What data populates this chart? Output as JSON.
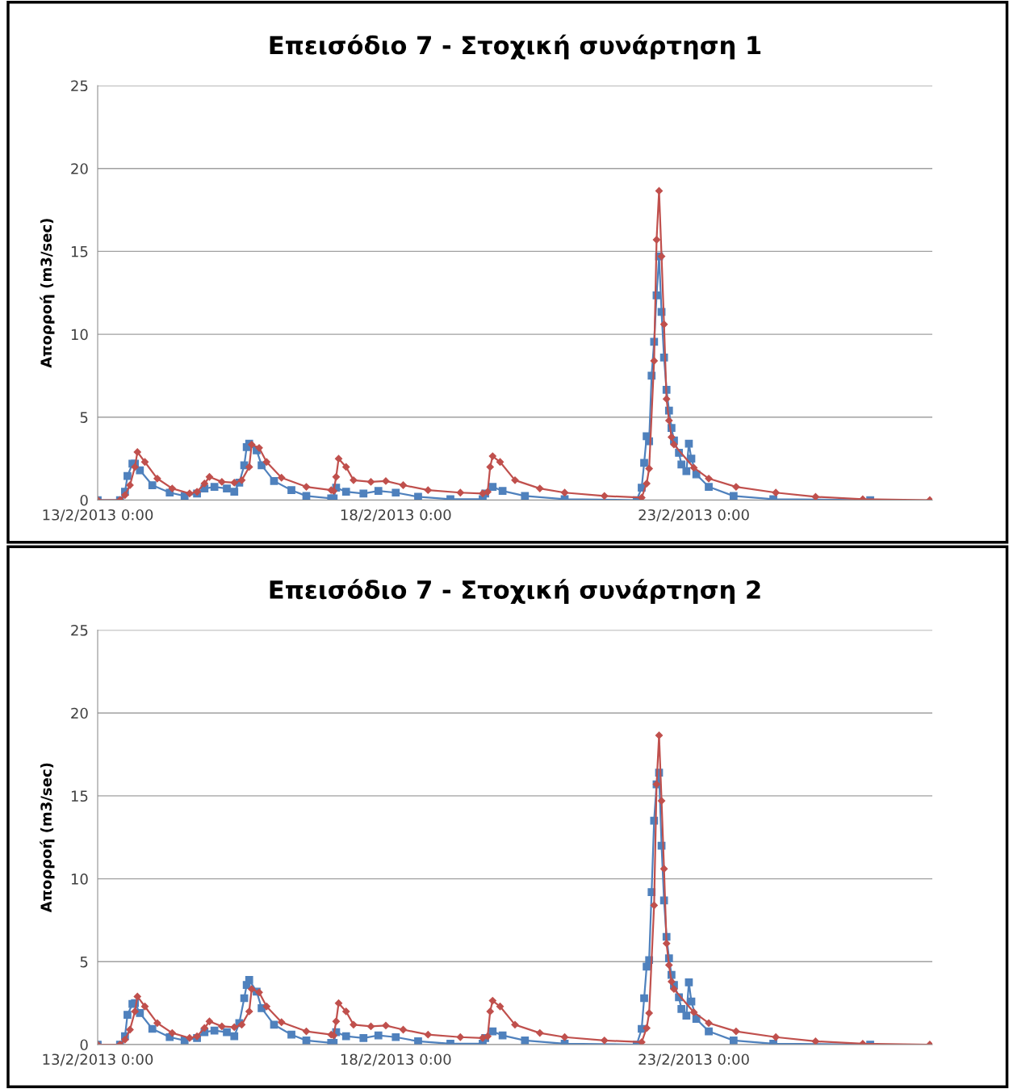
{
  "chart_data": [
    {
      "type": "line",
      "title": "Επεισόδιο 7 - Στοχική συνάρτηση 1",
      "ylabel": "Απορροή (m3/sec)",
      "xlim": [
        "2013-02-13T00:00",
        "2013-02-27T00:00"
      ],
      "xticks": [
        {
          "value": "2013-02-13T00:00",
          "label": "13/2/2013 0:00"
        },
        {
          "value": "2013-02-18T00:00",
          "label": "18/2/2013 0:00"
        },
        {
          "value": "2013-02-23T00:00",
          "label": "23/2/2013 0:00"
        }
      ],
      "ylim": [
        0,
        25
      ],
      "yticks": [
        0,
        5,
        10,
        15,
        20,
        25
      ],
      "grid": "y",
      "series": [
        {
          "color": "#4f81bd",
          "marker": "square",
          "x": [
            "2013-02-13T00:00",
            "2013-02-13T09:00",
            "2013-02-13T11:00",
            "2013-02-13T12:00",
            "2013-02-13T14:00",
            "2013-02-13T15:00",
            "2013-02-13T17:00",
            "2013-02-13T22:00",
            "2013-02-14T05:00",
            "2013-02-14T11:00",
            "2013-02-14T16:00",
            "2013-02-14T19:00",
            "2013-02-14T23:00",
            "2013-02-15T04:00",
            "2013-02-15T07:00",
            "2013-02-15T09:00",
            "2013-02-15T11:00",
            "2013-02-15T12:00",
            "2013-02-15T13:00",
            "2013-02-15T16:00",
            "2013-02-15T18:00",
            "2013-02-15T23:00",
            "2013-02-16T06:00",
            "2013-02-16T12:00",
            "2013-02-16T22:00",
            "2013-02-16T23:00",
            "2013-02-17T00:00",
            "2013-02-17T04:00",
            "2013-02-17T11:00",
            "2013-02-17T17:00",
            "2013-02-18T00:00",
            "2013-02-18T09:00",
            "2013-02-18T22:00",
            "2013-02-19T11:00",
            "2013-02-19T12:00",
            "2013-02-19T15:00",
            "2013-02-19T19:00",
            "2013-02-20T04:00",
            "2013-02-20T20:00",
            "2013-02-22T01:00",
            "2013-02-22T03:00",
            "2013-02-22T04:00",
            "2013-02-22T05:00",
            "2013-02-22T06:00",
            "2013-02-22T07:00",
            "2013-02-22T08:00",
            "2013-02-22T09:00",
            "2013-02-22T10:00",
            "2013-02-22T11:00",
            "2013-02-22T12:00",
            "2013-02-22T13:00",
            "2013-02-22T14:00",
            "2013-02-22T15:00",
            "2013-02-22T16:00",
            "2013-02-22T18:00",
            "2013-02-22T19:00",
            "2013-02-22T21:00",
            "2013-02-22T22:00",
            "2013-02-22T23:00",
            "2013-02-23T01:00",
            "2013-02-23T06:00",
            "2013-02-23T16:00",
            "2013-02-24T08:00",
            "2013-02-25T23:00"
          ],
          "values": [
            0,
            0,
            0.5,
            1.45,
            2.2,
            2.2,
            1.8,
            0.9,
            0.45,
            0.25,
            0.4,
            0.7,
            0.8,
            0.7,
            0.5,
            1.05,
            2.1,
            3.2,
            3.4,
            3.0,
            2.1,
            1.15,
            0.6,
            0.25,
            0.1,
            0.1,
            0.75,
            0.5,
            0.4,
            0.55,
            0.45,
            0.2,
            0.05,
            0.05,
            0.4,
            0.8,
            0.55,
            0.25,
            0.05,
            0,
            0.75,
            2.25,
            3.85,
            3.55,
            7.5,
            9.55,
            12.35,
            14.7,
            11.35,
            8.6,
            6.65,
            5.4,
            4.35,
            3.6,
            2.85,
            2.15,
            1.75,
            3.4,
            2.5,
            1.55,
            0.8,
            0.25,
            0.05,
            0
          ]
        },
        {
          "color": "#c0504d",
          "marker": "diamond",
          "x": [
            "2013-02-13T00:00",
            "2013-02-13T09:00",
            "2013-02-13T11:00",
            "2013-02-13T13:00",
            "2013-02-13T15:00",
            "2013-02-13T16:00",
            "2013-02-13T19:00",
            "2013-02-14T00:00",
            "2013-02-14T06:00",
            "2013-02-14T13:00",
            "2013-02-14T16:00",
            "2013-02-14T19:00",
            "2013-02-14T21:00",
            "2013-02-15T02:00",
            "2013-02-15T07:00",
            "2013-02-15T10:00",
            "2013-02-15T13:00",
            "2013-02-15T14:00",
            "2013-02-15T17:00",
            "2013-02-15T20:00",
            "2013-02-16T02:00",
            "2013-02-16T12:00",
            "2013-02-16T22:00",
            "2013-02-16T23:00",
            "2013-02-17T00:00",
            "2013-02-17T01:00",
            "2013-02-17T04:00",
            "2013-02-17T07:00",
            "2013-02-17T14:00",
            "2013-02-17T20:00",
            "2013-02-18T03:00",
            "2013-02-18T13:00",
            "2013-02-19T02:00",
            "2013-02-19T11:00",
            "2013-02-19T13:00",
            "2013-02-19T14:00",
            "2013-02-19T15:00",
            "2013-02-19T18:00",
            "2013-02-20T00:00",
            "2013-02-20T10:00",
            "2013-02-20T20:00",
            "2013-02-21T12:00",
            "2013-02-22T03:00",
            "2013-02-22T05:00",
            "2013-02-22T06:00",
            "2013-02-22T08:00",
            "2013-02-22T09:00",
            "2013-02-22T10:00",
            "2013-02-22T11:00",
            "2013-02-22T12:00",
            "2013-02-22T13:00",
            "2013-02-22T14:00",
            "2013-02-22T15:00",
            "2013-02-22T16:00",
            "2013-02-23T00:00",
            "2013-02-23T06:00",
            "2013-02-23T17:00",
            "2013-02-24T09:00",
            "2013-02-25T01:00",
            "2013-02-25T20:00",
            "2013-02-26T23:00"
          ],
          "values": [
            0,
            0,
            0.3,
            0.9,
            2.0,
            2.9,
            2.3,
            1.3,
            0.7,
            0.4,
            0.5,
            1.0,
            1.4,
            1.1,
            1.05,
            1.2,
            2.0,
            3.35,
            3.15,
            2.3,
            1.35,
            0.8,
            0.6,
            0.55,
            1.4,
            2.5,
            2.0,
            1.2,
            1.1,
            1.15,
            0.9,
            0.6,
            0.45,
            0.4,
            0.5,
            2.0,
            2.65,
            2.3,
            1.2,
            0.7,
            0.45,
            0.25,
            0.15,
            1.0,
            1.9,
            8.4,
            15.7,
            18.65,
            14.7,
            10.6,
            6.1,
            4.8,
            3.8,
            3.35,
            1.95,
            1.3,
            0.8,
            0.45,
            0.2,
            0.05,
            0
          ]
        }
      ]
    },
    {
      "type": "line",
      "title": "Επεισόδιο 7 - Στοχική συνάρτηση 2",
      "ylabel": "Απορροή (m3/sec)",
      "xlim": [
        "2013-02-13T00:00",
        "2013-02-27T00:00"
      ],
      "xticks": [
        {
          "value": "2013-02-13T00:00",
          "label": "13/2/2013 0:00"
        },
        {
          "value": "2013-02-18T00:00",
          "label": "18/2/2013 0:00"
        },
        {
          "value": "2013-02-23T00:00",
          "label": "23/2/2013 0:00"
        }
      ],
      "ylim": [
        0,
        25
      ],
      "yticks": [
        0,
        5,
        10,
        15,
        20,
        25
      ],
      "grid": "y",
      "series": [
        {
          "color": "#4f81bd",
          "marker": "square",
          "x": [
            "2013-02-13T00:00",
            "2013-02-13T09:00",
            "2013-02-13T11:00",
            "2013-02-13T12:00",
            "2013-02-13T14:00",
            "2013-02-13T15:00",
            "2013-02-13T17:00",
            "2013-02-13T22:00",
            "2013-02-14T05:00",
            "2013-02-14T11:00",
            "2013-02-14T16:00",
            "2013-02-14T19:00",
            "2013-02-14T23:00",
            "2013-02-15T04:00",
            "2013-02-15T07:00",
            "2013-02-15T09:00",
            "2013-02-15T11:00",
            "2013-02-15T12:00",
            "2013-02-15T13:00",
            "2013-02-15T16:00",
            "2013-02-15T18:00",
            "2013-02-15T23:00",
            "2013-02-16T06:00",
            "2013-02-16T12:00",
            "2013-02-16T22:00",
            "2013-02-16T23:00",
            "2013-02-17T00:00",
            "2013-02-17T04:00",
            "2013-02-17T11:00",
            "2013-02-17T17:00",
            "2013-02-18T00:00",
            "2013-02-18T09:00",
            "2013-02-18T22:00",
            "2013-02-19T11:00",
            "2013-02-19T12:00",
            "2013-02-19T15:00",
            "2013-02-19T19:00",
            "2013-02-20T04:00",
            "2013-02-20T20:00",
            "2013-02-22T01:00",
            "2013-02-22T03:00",
            "2013-02-22T04:00",
            "2013-02-22T05:00",
            "2013-02-22T06:00",
            "2013-02-22T07:00",
            "2013-02-22T08:00",
            "2013-02-22T09:00",
            "2013-02-22T10:00",
            "2013-02-22T11:00",
            "2013-02-22T12:00",
            "2013-02-22T13:00",
            "2013-02-22T14:00",
            "2013-02-22T15:00",
            "2013-02-22T16:00",
            "2013-02-22T18:00",
            "2013-02-22T19:00",
            "2013-02-22T21:00",
            "2013-02-22T22:00",
            "2013-02-22T23:00",
            "2013-02-23T01:00",
            "2013-02-23T06:00",
            "2013-02-23T16:00",
            "2013-02-24T08:00",
            "2013-02-25T23:00"
          ],
          "values": [
            0,
            0,
            0.5,
            1.8,
            2.45,
            2.5,
            1.9,
            0.95,
            0.45,
            0.25,
            0.4,
            0.75,
            0.85,
            0.75,
            0.5,
            1.3,
            2.8,
            3.6,
            3.9,
            3.2,
            2.2,
            1.2,
            0.6,
            0.25,
            0.1,
            0.1,
            0.75,
            0.5,
            0.4,
            0.55,
            0.45,
            0.2,
            0.05,
            0.05,
            0.4,
            0.8,
            0.55,
            0.25,
            0.05,
            0,
            0.95,
            2.8,
            4.7,
            5.1,
            9.2,
            13.5,
            15.7,
            16.4,
            12.0,
            8.7,
            6.5,
            5.2,
            4.2,
            3.6,
            2.85,
            2.15,
            1.75,
            3.75,
            2.6,
            1.55,
            0.8,
            0.25,
            0.05,
            0
          ]
        },
        {
          "color": "#c0504d",
          "marker": "diamond",
          "x": [
            "2013-02-13T00:00",
            "2013-02-13T09:00",
            "2013-02-13T11:00",
            "2013-02-13T13:00",
            "2013-02-13T15:00",
            "2013-02-13T16:00",
            "2013-02-13T19:00",
            "2013-02-14T00:00",
            "2013-02-14T06:00",
            "2013-02-14T13:00",
            "2013-02-14T16:00",
            "2013-02-14T19:00",
            "2013-02-14T21:00",
            "2013-02-15T02:00",
            "2013-02-15T07:00",
            "2013-02-15T10:00",
            "2013-02-15T13:00",
            "2013-02-15T14:00",
            "2013-02-15T17:00",
            "2013-02-15T20:00",
            "2013-02-16T02:00",
            "2013-02-16T12:00",
            "2013-02-16T22:00",
            "2013-02-16T23:00",
            "2013-02-17T00:00",
            "2013-02-17T01:00",
            "2013-02-17T04:00",
            "2013-02-17T07:00",
            "2013-02-17T14:00",
            "2013-02-17T20:00",
            "2013-02-18T03:00",
            "2013-02-18T13:00",
            "2013-02-19T02:00",
            "2013-02-19T11:00",
            "2013-02-19T13:00",
            "2013-02-19T14:00",
            "2013-02-19T15:00",
            "2013-02-19T18:00",
            "2013-02-20T00:00",
            "2013-02-20T10:00",
            "2013-02-20T20:00",
            "2013-02-21T12:00",
            "2013-02-22T03:00",
            "2013-02-22T05:00",
            "2013-02-22T06:00",
            "2013-02-22T08:00",
            "2013-02-22T09:00",
            "2013-02-22T10:00",
            "2013-02-22T11:00",
            "2013-02-22T12:00",
            "2013-02-22T13:00",
            "2013-02-22T14:00",
            "2013-02-22T15:00",
            "2013-02-22T16:00",
            "2013-02-23T00:00",
            "2013-02-23T06:00",
            "2013-02-23T17:00",
            "2013-02-24T09:00",
            "2013-02-25T01:00",
            "2013-02-25T20:00",
            "2013-02-26T23:00"
          ],
          "values": [
            0,
            0,
            0.3,
            0.9,
            2.0,
            2.9,
            2.3,
            1.3,
            0.7,
            0.4,
            0.5,
            1.0,
            1.4,
            1.1,
            1.05,
            1.2,
            2.0,
            3.35,
            3.15,
            2.3,
            1.35,
            0.8,
            0.6,
            0.55,
            1.4,
            2.5,
            2.0,
            1.2,
            1.1,
            1.15,
            0.9,
            0.6,
            0.45,
            0.4,
            0.5,
            2.0,
            2.65,
            2.3,
            1.2,
            0.7,
            0.45,
            0.25,
            0.15,
            1.0,
            1.9,
            8.4,
            15.7,
            18.65,
            14.7,
            10.6,
            6.1,
            4.8,
            3.8,
            3.35,
            1.95,
            1.3,
            0.8,
            0.45,
            0.2,
            0.05,
            0
          ]
        }
      ]
    }
  ]
}
